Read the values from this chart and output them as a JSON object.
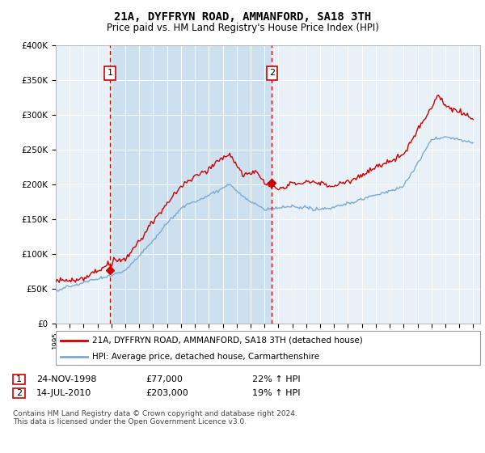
{
  "title": "21A, DYFFRYN ROAD, AMMANFORD, SA18 3TH",
  "subtitle": "Price paid vs. HM Land Registry's House Price Index (HPI)",
  "legend_line1": "21A, DYFFRYN ROAD, AMMANFORD, SA18 3TH (detached house)",
  "legend_line2": "HPI: Average price, detached house, Carmarthenshire",
  "transaction1_date": "24-NOV-1998",
  "transaction1_price": "£77,000",
  "transaction1_hpi": "22% ↑ HPI",
  "transaction2_date": "14-JUL-2010",
  "transaction2_price": "£203,000",
  "transaction2_hpi": "19% ↑ HPI",
  "footnote": "Contains HM Land Registry data © Crown copyright and database right 2024.\nThis data is licensed under the Open Government Licence v3.0.",
  "red_color": "#cc0000",
  "blue_color": "#7aabcc",
  "shade_color": "#cce0f0",
  "background_color": "#e8f0f8",
  "grid_color": "#cccccc",
  "marker1_year": 1998.9,
  "marker1_value": 77000,
  "marker2_year": 2010.54,
  "marker2_value": 203000,
  "ylim": [
    0,
    400000
  ],
  "yticks": [
    0,
    50000,
    100000,
    150000,
    200000,
    250000,
    300000,
    350000,
    400000
  ],
  "ytick_labels": [
    "£0",
    "£50K",
    "£100K",
    "£150K",
    "£200K",
    "£250K",
    "£300K",
    "£350K",
    "£400K"
  ]
}
